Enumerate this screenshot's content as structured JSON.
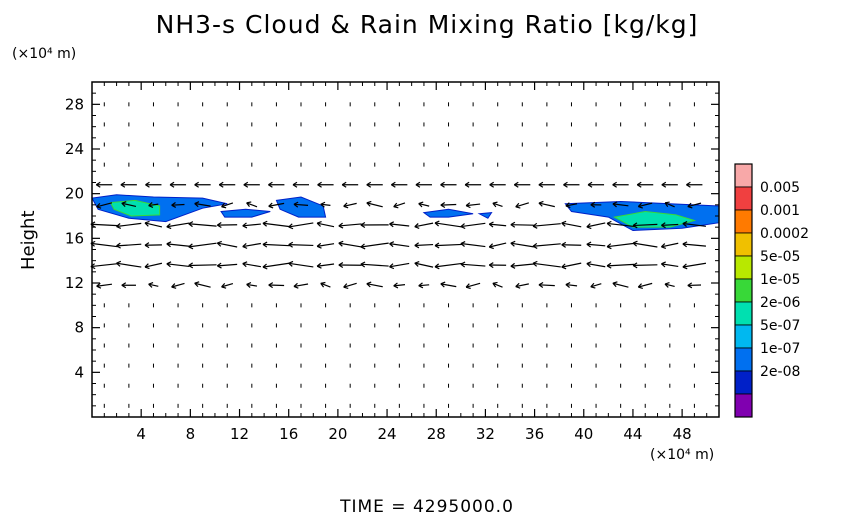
{
  "chart_data": {
    "type": "heatmap",
    "title": "NH3-s Cloud & Rain Mixing Ratio [kg/kg]",
    "xlabel": "",
    "ylabel": "Height",
    "x_unit": "(×10⁴ m)",
    "y_unit": "(×10⁴ m)",
    "xlim": [
      0,
      51
    ],
    "ylim": [
      0,
      30
    ],
    "x_ticks": [
      4,
      8,
      12,
      16,
      20,
      24,
      28,
      32,
      36,
      40,
      44,
      48
    ],
    "y_ticks": [
      4,
      8,
      12,
      16,
      20,
      24,
      28
    ],
    "colorbar": {
      "labels": [
        "0.005",
        "0.001",
        "0.0002",
        "5e-05",
        "1e-05",
        "2e-06",
        "5e-07",
        "1e-07",
        "2e-08"
      ],
      "colors": [
        "#f8a8a8",
        "#f04040",
        "#ff7a00",
        "#f0c000",
        "#b8e800",
        "#38d838",
        "#00e0b0",
        "#00b8f0",
        "#0070f0",
        "#0020c8",
        "#8000b0"
      ]
    },
    "vector_field": "wind vectors overlaid (arrows)",
    "footer": "TIME = 4295000.0"
  }
}
